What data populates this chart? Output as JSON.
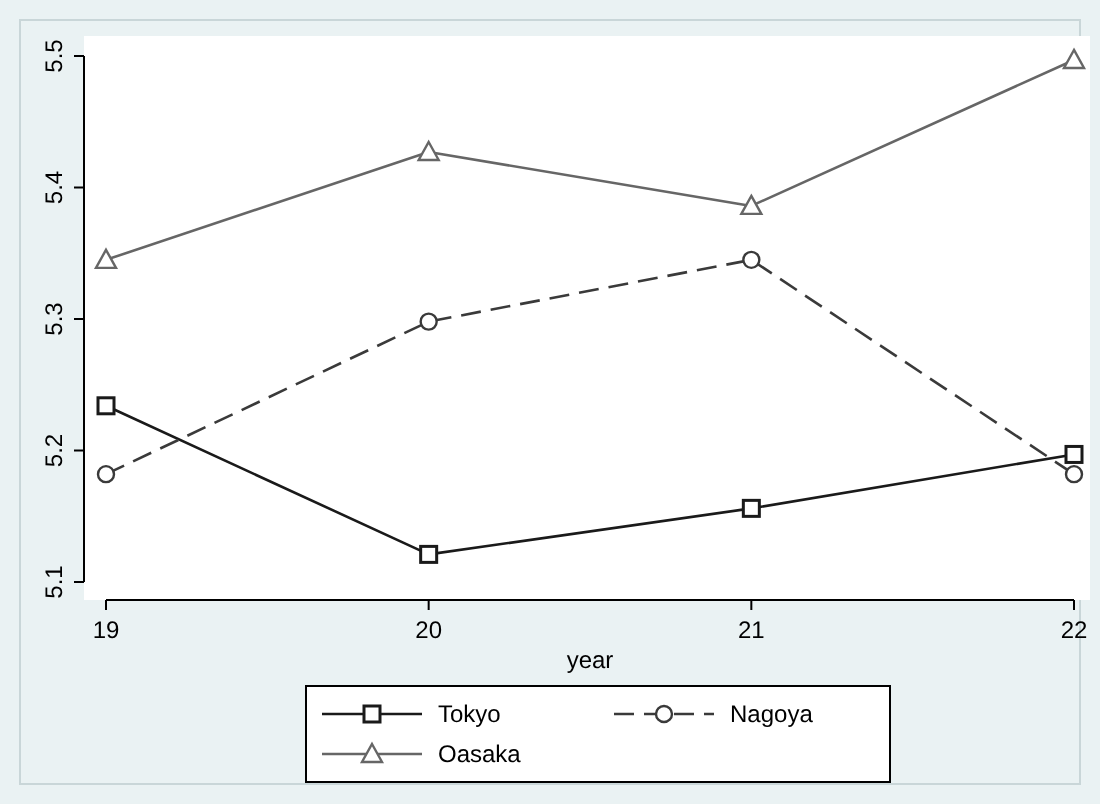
{
  "chart_data": {
    "type": "line",
    "xlabel": "year",
    "x": [
      19,
      20,
      21,
      22
    ],
    "xlim": [
      19,
      22
    ],
    "xticks": [
      19,
      20,
      21,
      22
    ],
    "ylim": [
      5.1,
      5.5
    ],
    "yticks": [
      5.1,
      5.2,
      5.3,
      5.4,
      5.5
    ],
    "grid": false,
    "legend": "bottom",
    "series": [
      {
        "name": "Tokyo",
        "color": "#1a1a1a",
        "marker": "square",
        "line_style": "solid",
        "values": [
          5.234,
          5.121,
          5.156,
          5.197
        ]
      },
      {
        "name": "Nagoya",
        "color": "#3a3a3a",
        "marker": "circle",
        "line_style": "dashed",
        "values": [
          5.182,
          5.298,
          5.345,
          5.182
        ]
      },
      {
        "name": "Oasaka",
        "color": "#666666",
        "marker": "triangle",
        "line_style": "solid",
        "values": [
          5.345,
          5.427,
          5.386,
          5.497
        ]
      }
    ]
  }
}
